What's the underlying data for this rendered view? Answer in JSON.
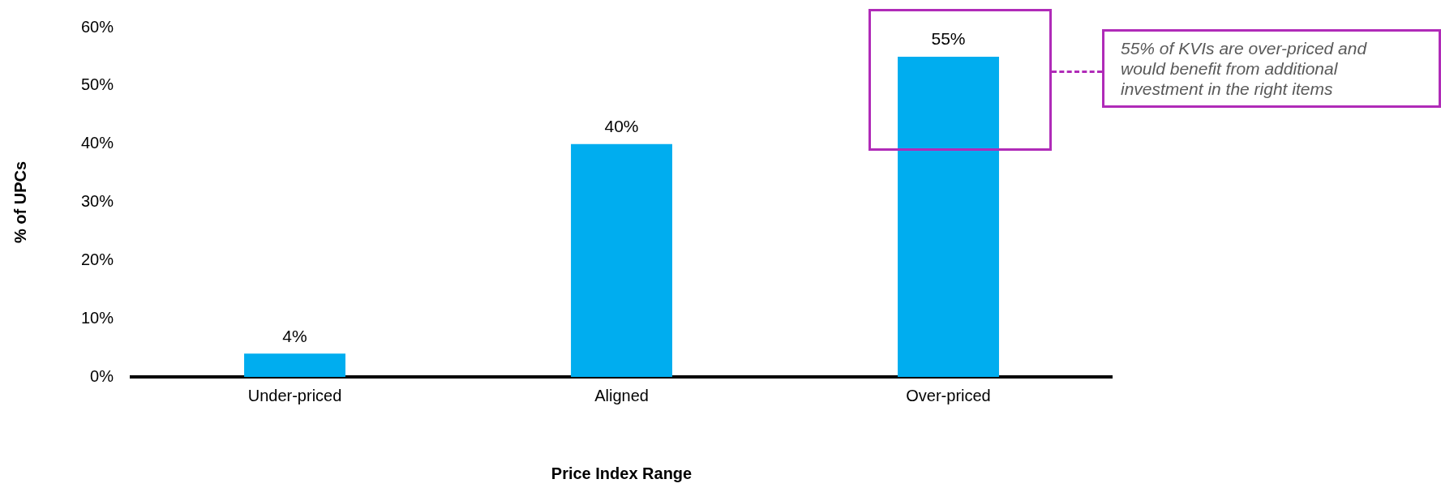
{
  "chart_data": {
    "type": "bar",
    "xlabel": "Price Index Range",
    "ylabel": "% of UPCs",
    "categories": [
      "Under-priced",
      "Aligned",
      "Over-priced"
    ],
    "values": [
      4,
      40,
      55
    ],
    "color": "#00adef",
    "value_labels": [
      "4%",
      "40%",
      "55%"
    ],
    "ylim": [
      0,
      60
    ],
    "yticks": [
      {
        "value": 0,
        "label": "0%"
      },
      {
        "value": 10,
        "label": "10%"
      },
      {
        "value": 20,
        "label": "20%"
      },
      {
        "value": 30,
        "label": "30%"
      },
      {
        "value": 40,
        "label": "40%"
      },
      {
        "value": 50,
        "label": "50%"
      },
      {
        "value": 60,
        "label": "60%"
      }
    ],
    "annotations": [
      "55% of KVIs are over-priced and would benefit from additional investment in the right items"
    ],
    "grid": false,
    "legend": false
  }
}
